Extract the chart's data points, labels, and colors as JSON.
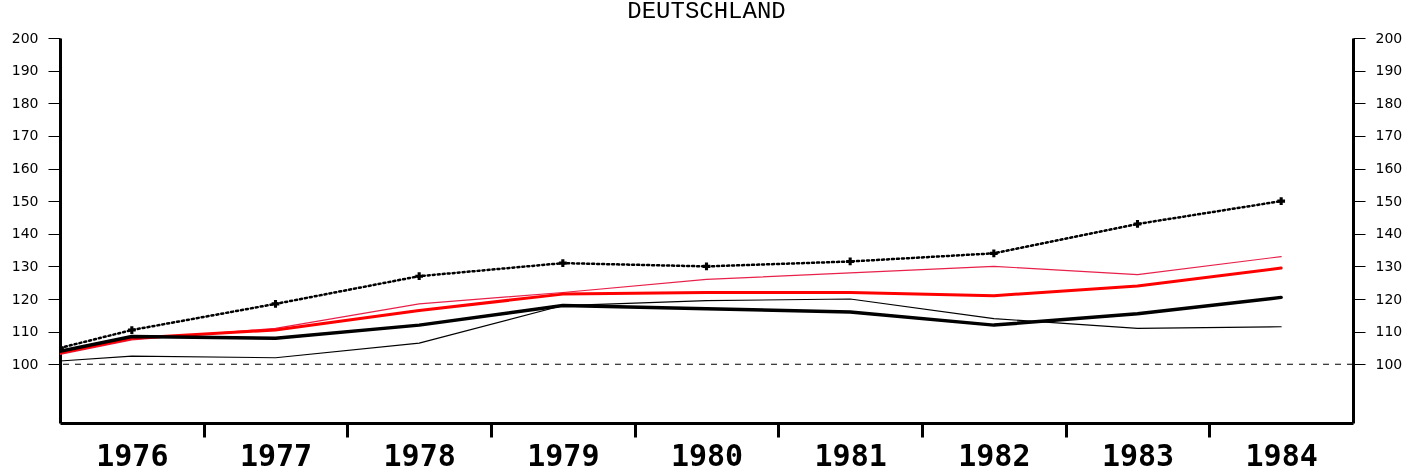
{
  "chart_data": {
    "type": "line",
    "title": "DEUTSCHLAND",
    "xlim": [
      1975.5,
      1984.5
    ],
    "xticks": [
      {
        "value": 1976,
        "label": "1976"
      },
      {
        "value": 1976.5,
        "label": null
      },
      {
        "value": 1977,
        "label": "1977"
      },
      {
        "value": 1977.5,
        "label": null
      },
      {
        "value": 1978,
        "label": "1978"
      },
      {
        "value": 1978.5,
        "label": null
      },
      {
        "value": 1979,
        "label": "1979"
      },
      {
        "value": 1979.5,
        "label": null
      },
      {
        "value": 1980,
        "label": "1980"
      },
      {
        "value": 1980.5,
        "label": null
      },
      {
        "value": 1981,
        "label": "1981"
      },
      {
        "value": 1981.5,
        "label": null
      },
      {
        "value": 1982,
        "label": "1982"
      },
      {
        "value": 1982.5,
        "label": null
      },
      {
        "value": 1983,
        "label": "1983"
      },
      {
        "value": 1983.5,
        "label": null
      },
      {
        "value": 1984,
        "label": "1984"
      }
    ],
    "x": [
      1975.5,
      1976,
      1977,
      1978,
      1979,
      1980,
      1981,
      1982,
      1983,
      1984
    ],
    "ylim": [
      82,
      200
    ],
    "yticks": [
      100,
      110,
      120,
      130,
      140,
      150,
      160,
      170,
      180,
      190,
      200
    ],
    "y2lim": [
      82,
      200
    ],
    "y2ticks": [
      100,
      110,
      120,
      130,
      140,
      150,
      160,
      170,
      180,
      190,
      200
    ],
    "grid": false,
    "ref_lines": [
      {
        "axis": "y",
        "value": 100,
        "color": "#000000",
        "line_style": "dashed"
      }
    ],
    "series": [
      {
        "color": "#000000",
        "marker": "cross",
        "line_style": "dotted",
        "values": [
          105,
          110.5,
          118.5,
          127,
          131,
          130,
          131.5,
          134,
          143,
          150
        ]
      },
      {
        "color": "#e8204a",
        "line_style": "solid",
        "values": [
          103,
          107.5,
          111,
          118.5,
          122,
          126,
          128,
          130,
          127.5,
          133
        ]
      },
      {
        "color": "#ff0000",
        "line_style": "solid",
        "values": [
          103.5,
          108,
          110.5,
          116.5,
          121.5,
          122,
          122,
          121,
          124,
          129.5
        ]
      },
      {
        "color": "#000000",
        "line_style": "solid",
        "values": [
          104,
          108.5,
          108,
          112,
          118,
          117,
          116,
          112,
          115.5,
          120.5
        ]
      },
      {
        "color": "#000000",
        "line_style": "solid",
        "values": [
          101,
          102.5,
          102,
          106.5,
          118,
          119.5,
          120,
          114,
          111,
          111.5
        ]
      }
    ]
  }
}
